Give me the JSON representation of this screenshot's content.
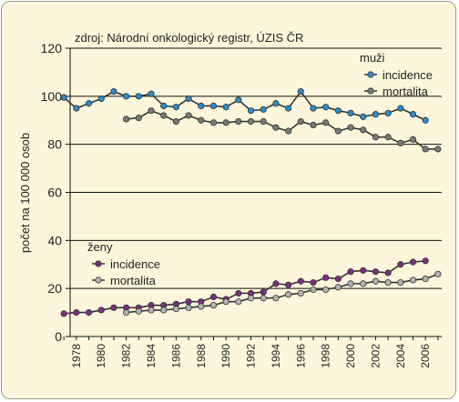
{
  "chart_data": {
    "type": "line",
    "source": "zdroj: Národní onkologický registr, ÚZIS ČR",
    "ylabel": "počet na 100 000 osob",
    "xlabel": "",
    "ylim": [
      0,
      120
    ],
    "yticks": [
      0,
      20,
      40,
      60,
      80,
      100,
      120
    ],
    "xlim": [
      1977,
      2007
    ],
    "xtick_labels": [
      "1978",
      "1980",
      "1982",
      "1984",
      "1986",
      "1988",
      "1990",
      "1992",
      "1994",
      "1996",
      "1998",
      "2000",
      "2002",
      "2004",
      "2006"
    ],
    "grid": true,
    "colors": {
      "blue": "#2e8bc9",
      "gray": "#7a7a7a",
      "purple": "#7a2f7e",
      "lightgray": "#b3b3b3"
    },
    "legends": [
      {
        "title": "muži",
        "entries": [
          {
            "label": "incidence",
            "series": 0
          },
          {
            "label": "mortalita",
            "series": 1
          }
        ]
      },
      {
        "title": "ženy",
        "entries": [
          {
            "label": "incidence",
            "series": 2
          },
          {
            "label": "mortalita",
            "series": 3
          }
        ]
      }
    ],
    "series": [
      {
        "name": "muži – incidence",
        "color": "#2e8bc9",
        "x": [
          1977,
          1978,
          1979,
          1980,
          1981,
          1982,
          1983,
          1984,
          1985,
          1986,
          1987,
          1988,
          1989,
          1990,
          1991,
          1992,
          1993,
          1994,
          1995,
          1996,
          1997,
          1998,
          1999,
          2000,
          2001,
          2002,
          2003,
          2004,
          2005,
          2006,
          2007
        ],
        "values": [
          99.5,
          95,
          97,
          99,
          102,
          100,
          100,
          101,
          96,
          95.5,
          99,
          96,
          96,
          95.5,
          98.5,
          94,
          94.5,
          97,
          95,
          102,
          95,
          95.5,
          94,
          93,
          91.5,
          92.5,
          93,
          95,
          92.5,
          90,
          null
        ]
      },
      {
        "name": "muži – mortalita",
        "color": "#7a7a7a",
        "x": [
          1982,
          1983,
          1984,
          1985,
          1986,
          1987,
          1988,
          1989,
          1990,
          1991,
          1992,
          1993,
          1994,
          1995,
          1996,
          1997,
          1998,
          1999,
          2000,
          2001,
          2002,
          2003,
          2004,
          2005,
          2006,
          2007
        ],
        "values": [
          90.5,
          91,
          94,
          92,
          89.5,
          92,
          90,
          89,
          89,
          89.5,
          89.5,
          89.5,
          87,
          85.5,
          89.5,
          88,
          89,
          85.5,
          87,
          86,
          83,
          83,
          80.5,
          82,
          78,
          78
        ]
      },
      {
        "name": "ženy – incidence",
        "color": "#7a2f7e",
        "x": [
          1977,
          1978,
          1979,
          1980,
          1981,
          1982,
          1983,
          1984,
          1985,
          1986,
          1987,
          1988,
          1989,
          1990,
          1991,
          1992,
          1993,
          1994,
          1995,
          1996,
          1997,
          1998,
          1999,
          2000,
          2001,
          2002,
          2003,
          2004,
          2005,
          2006,
          2007
        ],
        "values": [
          9.5,
          10,
          10,
          11,
          12,
          12,
          12,
          13,
          13,
          13.5,
          14.5,
          14.5,
          16.5,
          15.5,
          18,
          18,
          18.5,
          22,
          21.5,
          23,
          22.5,
          24.5,
          24,
          27,
          27.5,
          27,
          26.5,
          30,
          31,
          31.5,
          null
        ]
      },
      {
        "name": "ženy – mortalita",
        "color": "#b3b3b3",
        "x": [
          1982,
          1983,
          1984,
          1985,
          1986,
          1987,
          1988,
          1989,
          1990,
          1991,
          1992,
          1993,
          1994,
          1995,
          1996,
          1997,
          1998,
          1999,
          2000,
          2001,
          2002,
          2003,
          2004,
          2005,
          2006,
          2007
        ],
        "values": [
          10,
          10.5,
          11,
          11,
          11.5,
          12,
          12.5,
          13,
          14.5,
          14.5,
          16,
          16,
          16,
          17.5,
          18,
          19.5,
          19.5,
          20.5,
          22,
          22,
          23,
          22.5,
          22.5,
          23.5,
          24,
          26
        ]
      }
    ]
  }
}
